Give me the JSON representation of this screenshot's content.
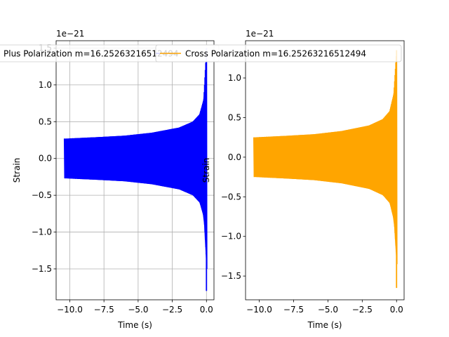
{
  "chart_data": [
    {
      "type": "line",
      "xlabel": "Time (s)",
      "ylabel": "Strain",
      "offset_text": "1e−21",
      "y_scale": 1e-21,
      "xlim": [
        -11.0,
        0.55
      ],
      "ylim": [
        -1.92,
        1.6
      ],
      "x_ticks": [
        -10.0,
        -7.5,
        -5.0,
        -2.5,
        0.0
      ],
      "x_tick_labels": [
        "−10.0",
        "−7.5",
        "−5.0",
        "−2.5",
        "0.0"
      ],
      "y_ticks": [
        -1.5,
        -1.0,
        -0.5,
        0.0,
        0.5,
        1.0,
        1.5
      ],
      "y_tick_labels": [
        "−1.5",
        "−1.0",
        "−0.5",
        "0.0",
        "0.5",
        "1.0",
        "1.5"
      ],
      "grid": true,
      "legend_placement": "upper center (overflowing above axes)",
      "series": [
        {
          "name": "Plus Polarization m=16.25263216512494",
          "color": "#0000ff",
          "t_start": -10.4,
          "t_end": 0.0,
          "envelope": [
            [
              -10.4,
              0.27
            ],
            [
              -8.0,
              0.29
            ],
            [
              -6.0,
              0.31
            ],
            [
              -4.0,
              0.35
            ],
            [
              -2.0,
              0.42
            ],
            [
              -1.0,
              0.5
            ],
            [
              -0.5,
              0.6
            ],
            [
              -0.2,
              0.8
            ],
            [
              0.0,
              1.5
            ]
          ],
          "min_value": -1.8,
          "max_value": 1.5
        }
      ]
    },
    {
      "type": "line",
      "xlabel": "Time (s)",
      "ylabel": "Strain",
      "offset_text": "1e−21",
      "y_scale": 1e-21,
      "xlim": [
        -11.0,
        0.55
      ],
      "ylim": [
        -1.8,
        1.47
      ],
      "x_ticks": [
        -10.0,
        -7.5,
        -5.0,
        -2.5,
        0.0
      ],
      "x_tick_labels": [
        "−10.0",
        "−7.5",
        "−5.0",
        "−2.5",
        "0.0"
      ],
      "y_ticks": [
        -1.5,
        -1.0,
        -0.5,
        0.0,
        0.5,
        1.0
      ],
      "y_tick_labels": [
        "−1.5",
        "−1.0",
        "−0.5",
        "0.0",
        "0.5",
        "1.0"
      ],
      "grid": false,
      "legend_placement": "upper center (overflowing above axes)",
      "series": [
        {
          "name": "Cross Polarization m=16.25263216512494",
          "color": "#ffa500",
          "t_start": -10.4,
          "t_end": 0.0,
          "envelope": [
            [
              -10.4,
              0.25
            ],
            [
              -8.0,
              0.27
            ],
            [
              -6.0,
              0.29
            ],
            [
              -4.0,
              0.33
            ],
            [
              -2.0,
              0.4
            ],
            [
              -1.0,
              0.48
            ],
            [
              -0.5,
              0.58
            ],
            [
              -0.2,
              0.8
            ],
            [
              0.0,
              1.35
            ]
          ],
          "min_value": -1.65,
          "max_value": 1.35
        }
      ]
    }
  ]
}
